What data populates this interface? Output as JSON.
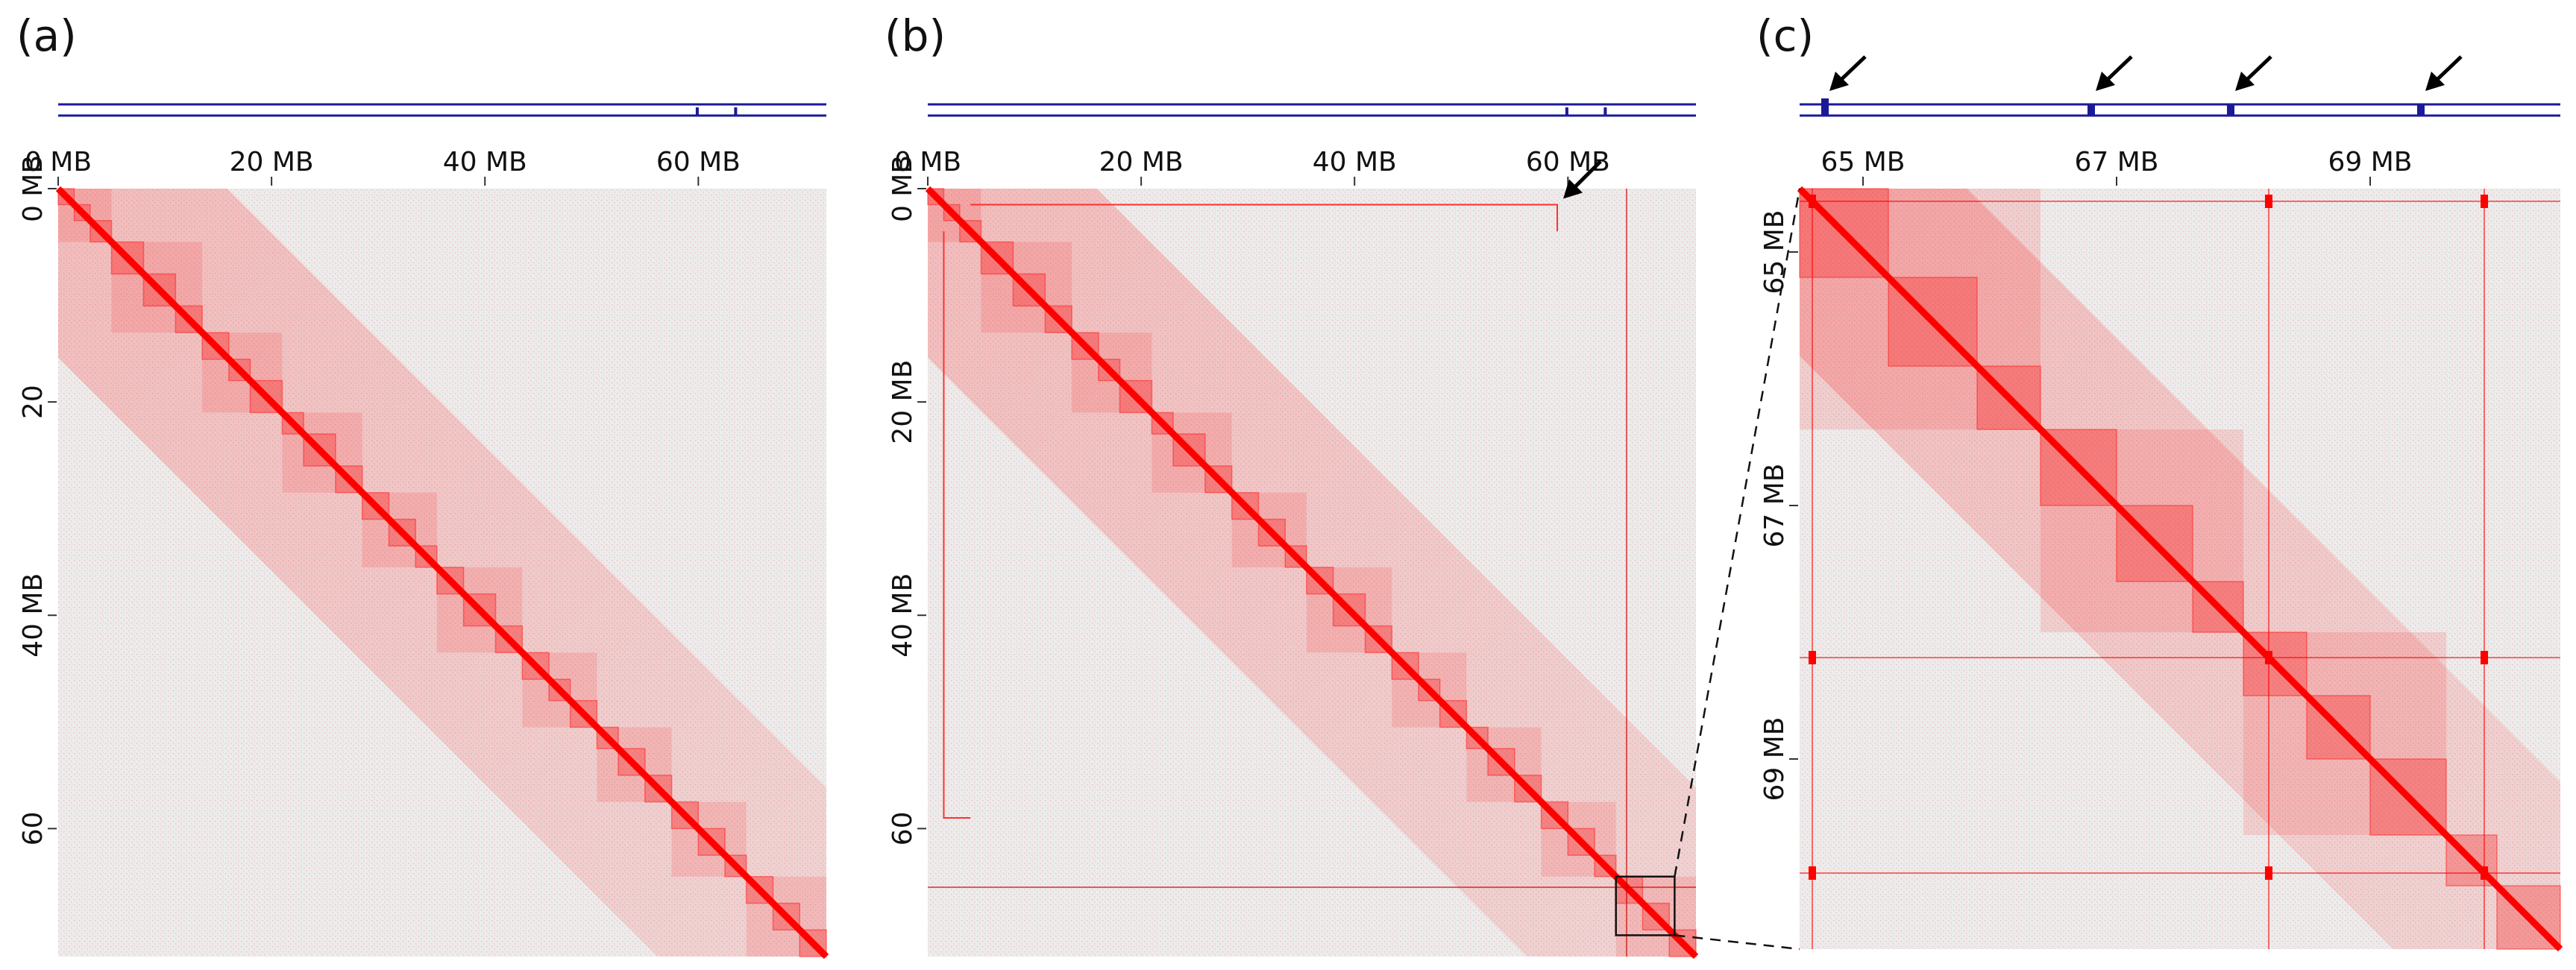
{
  "chart_data": [
    {
      "type": "heatmap",
      "panel_label": "(a)",
      "description": "Hi-C contact map, chromosome-wide",
      "top_ticks": [
        "0 MB",
        "20 MB",
        "40 MB",
        "60 MB"
      ],
      "left_ticks": [
        "0 MB",
        "20",
        "40 MB",
        "60"
      ],
      "tick_values_mb": [
        0,
        20,
        40,
        60
      ],
      "range_mb": [
        0,
        72
      ],
      "colors": {
        "high": "#ff0000",
        "low": "#ececec",
        "track": "#1a1a99"
      },
      "domain_boundaries_mb": [
        0,
        1.5,
        3,
        5,
        8,
        11,
        13.5,
        16,
        18,
        21,
        23,
        26,
        28.5,
        31,
        33.5,
        35.5,
        38,
        41,
        43.5,
        46,
        48,
        50.5,
        52.5,
        55,
        57.5,
        60,
        62.5,
        64.5,
        67,
        69.5,
        72
      ]
    },
    {
      "type": "heatmap",
      "panel_label": "(b)",
      "description": "Hi-C contact map with rearrangement signal",
      "top_ticks": [
        "0 MB",
        "20 MB",
        "40 MB",
        "60 MB"
      ],
      "left_ticks": [
        "0 MB",
        "20 MB",
        "40 MB",
        "60"
      ],
      "tick_values_mb": [
        0,
        20,
        40,
        60
      ],
      "range_mb": [
        0,
        72
      ],
      "colors": {
        "high": "#ff0000",
        "low": "#ececec",
        "track": "#1a1a99"
      },
      "annotations": [
        "arrow at off-diagonal contact near (0 MB, 59 MB)",
        "box marking 64.5–70 MB region zoomed in (c)"
      ],
      "zoom_box_mb": [
        64.5,
        70
      ],
      "domain_boundaries_mb": [
        0,
        1.5,
        3,
        5,
        8,
        11,
        13.5,
        16,
        18,
        21,
        23,
        26,
        28.5,
        31,
        33.5,
        35.5,
        38,
        41,
        43.5,
        46,
        48,
        50.5,
        52.5,
        55,
        57.5,
        60,
        62.5,
        64.5,
        67,
        69.5,
        72
      ]
    },
    {
      "type": "heatmap",
      "panel_label": "(c)",
      "description": "Zoom into 64.5–70 MB",
      "top_ticks": [
        "65 MB",
        "67 MB",
        "69 MB"
      ],
      "left_ticks": [
        "65 MB",
        "67 MB",
        "69 MB"
      ],
      "tick_values_mb": [
        65,
        67,
        69
      ],
      "range_mb": [
        64.5,
        70.5
      ],
      "colors": {
        "high": "#ff0000",
        "low": "#ececec",
        "track": "#1a1a99"
      },
      "signal_lines_mb": [
        64.6,
        68.2,
        69.9
      ],
      "track_peaks_mb": [
        64.7,
        66.8,
        67.9,
        69.4
      ],
      "domain_boundaries_mb": [
        64.5,
        65.2,
        65.9,
        66.4,
        67.0,
        67.6,
        68.0,
        68.5,
        69.0,
        69.6,
        70.0,
        70.5
      ]
    }
  ]
}
